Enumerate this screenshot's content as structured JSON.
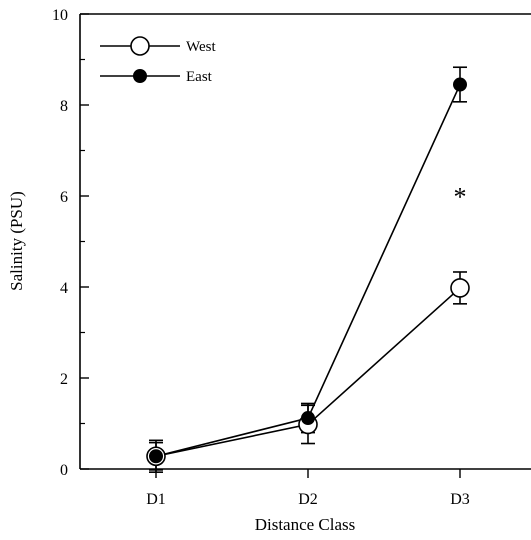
{
  "chart_data": {
    "type": "line",
    "title": "",
    "xlabel": "Distance Class",
    "ylabel": "Salinity (PSU)",
    "categories": [
      "D1",
      "D2",
      "D3"
    ],
    "ylim": [
      0,
      10
    ],
    "yticks": [
      0,
      2,
      4,
      6,
      8,
      10
    ],
    "grid": false,
    "legend_position": "top-left",
    "series": [
      {
        "name": "West",
        "marker": "open-circle",
        "values": [
          0.28,
          0.98,
          3.98
        ],
        "error": [
          0.35,
          0.42,
          0.35
        ]
      },
      {
        "name": "East",
        "marker": "filled-circle",
        "values": [
          0.28,
          1.12,
          8.45
        ],
        "error": [
          0.3,
          0.32,
          0.38
        ]
      }
    ],
    "annotations": [
      {
        "text": "*",
        "x": "D3",
        "y": 6.1
      }
    ]
  }
}
